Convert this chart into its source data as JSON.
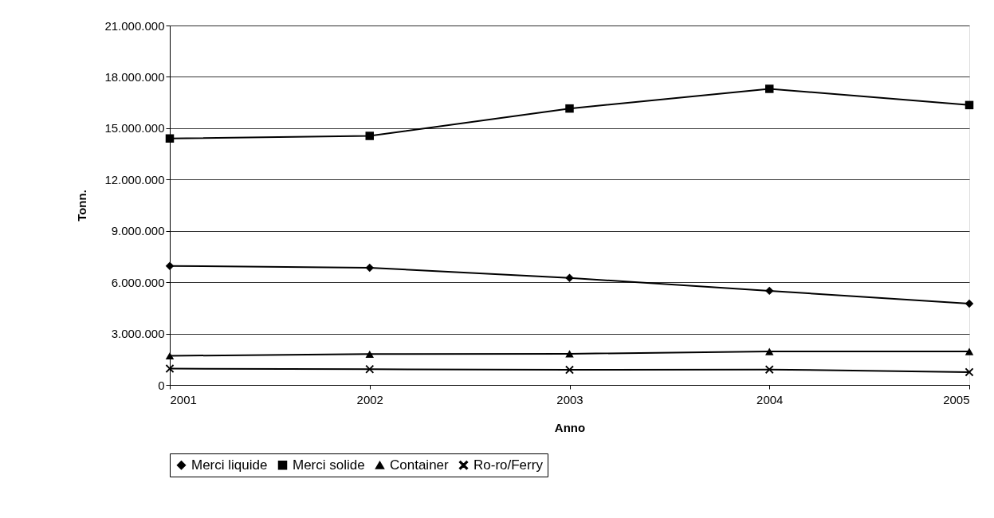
{
  "chart_data": {
    "type": "line",
    "xlabel": "Anno",
    "ylabel": "Tonn.",
    "x": [
      2001,
      2002,
      2003,
      2004,
      2005
    ],
    "series": [
      {
        "name": "Merci liquide",
        "color": "#000000",
        "marker": "diamond",
        "values": [
          6950000,
          6850000,
          6250000,
          5500000,
          4750000
        ]
      },
      {
        "name": "Merci solide",
        "color": "#000000",
        "marker": "square",
        "values": [
          14400000,
          14550000,
          16150000,
          17300000,
          16350000
        ]
      },
      {
        "name": "Container",
        "color": "#000000",
        "marker": "triangle",
        "values": [
          1700000,
          1800000,
          1820000,
          1950000,
          1950000
        ]
      },
      {
        "name": "Ro-ro/Ferry",
        "color": "#000000",
        "marker": "cross",
        "values": [
          950000,
          920000,
          880000,
          900000,
          750000
        ]
      }
    ],
    "xlim": [
      2001,
      2005
    ],
    "xticks": [
      2001,
      2002,
      2003,
      2004,
      2005
    ],
    "ylim": [
      0,
      21000000
    ],
    "yticks": [
      {
        "value": 0,
        "label": "0"
      },
      {
        "value": 3000000,
        "label": "3.000.000"
      },
      {
        "value": 6000000,
        "label": "6.000.000"
      },
      {
        "value": 9000000,
        "label": "9.000.000"
      },
      {
        "value": 12000000,
        "label": "12.000.000"
      },
      {
        "value": 15000000,
        "label": "15.000.000"
      },
      {
        "value": 18000000,
        "label": "18.000.000"
      },
      {
        "value": 21000000,
        "label": "21.000.000"
      }
    ],
    "grid": "y",
    "legend": "bottom",
    "line_style": "solid"
  }
}
